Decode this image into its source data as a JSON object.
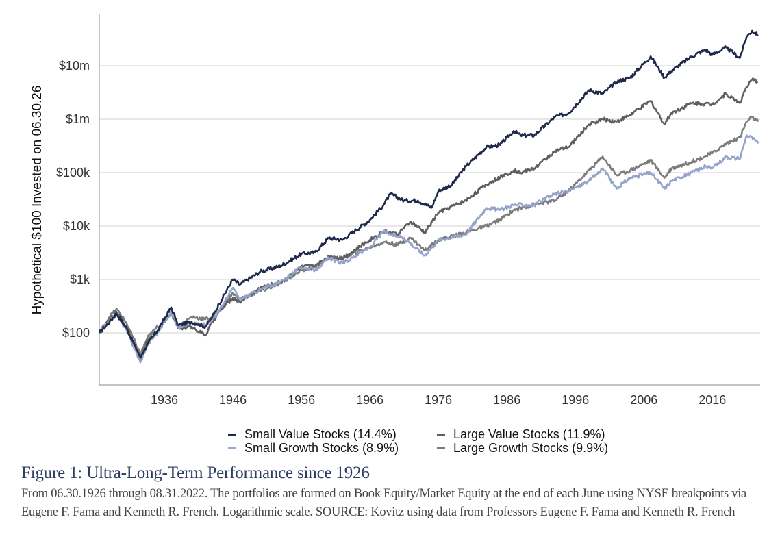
{
  "chart_data": {
    "type": "line",
    "title": "Figure 1: Ultra-Long-Term Performance since 1926",
    "xlabel": "",
    "ylabel": "Hypothetical $100 Invested on 06.30.26",
    "y_scale": "log",
    "ylim": [
      20,
      70000000
    ],
    "xlim": [
      1926.5,
      2022.67
    ],
    "grid": true,
    "legend_position": "bottom",
    "x_ticks": [
      1936,
      1946,
      1956,
      1966,
      1976,
      1986,
      1996,
      2006,
      2016
    ],
    "x_tick_labels": [
      "1936",
      "1946",
      "1956",
      "1966",
      "1976",
      "1986",
      "1996",
      "2006",
      "2016"
    ],
    "y_ticks": [
      100,
      1000,
      10000,
      100000,
      1000000,
      10000000
    ],
    "y_tick_labels": [
      "$100",
      "$1k",
      "$10k",
      "$100k",
      "$1m",
      "$10m"
    ],
    "series": [
      {
        "name": "Small Value Stocks (14.4%)",
        "color": "#1f2a4a",
        "x": [
          1926.5,
          1928,
          1929,
          1930.5,
          1932.5,
          1933.5,
          1935,
          1937,
          1938,
          1940,
          1942,
          1943,
          1944,
          1946,
          1947,
          1950,
          1953,
          1956,
          1958,
          1960,
          1962,
          1966,
          1968,
          1969,
          1971,
          1973,
          1975,
          1976,
          1978,
          1980,
          1983,
          1985,
          1987,
          1988,
          1990,
          1993,
          1995,
          1998,
          2000,
          2002,
          2004,
          2007,
          2009,
          2010,
          2013,
          2015,
          2016,
          2018,
          2020,
          2021,
          2021.8,
          2022.67
        ],
        "values": [
          100,
          160,
          230,
          120,
          35,
          60,
          110,
          300,
          140,
          160,
          130,
          200,
          350,
          1000,
          800,
          1400,
          1800,
          3000,
          3200,
          6000,
          5500,
          13000,
          25000,
          40000,
          30000,
          30000,
          22000,
          45000,
          60000,
          130000,
          300000,
          330000,
          600000,
          500000,
          500000,
          1100000,
          1300000,
          3500000,
          3000000,
          5000000,
          6000000,
          15000000,
          6000000,
          8000000,
          15000000,
          20000000,
          16000000,
          22000000,
          14000000,
          35000000,
          45000000,
          38000000
        ]
      },
      {
        "name": "Large Value Stocks (11.9%)",
        "color": "#5f5f5f",
        "x": [
          1926.5,
          1928,
          1929,
          1930.5,
          1932.5,
          1933.5,
          1935,
          1937,
          1938,
          1940,
          1942,
          1943,
          1944,
          1946,
          1947,
          1950,
          1953,
          1956,
          1958,
          1960,
          1962,
          1966,
          1968,
          1970,
          1972,
          1974,
          1976,
          1980,
          1983,
          1987,
          1988,
          1990,
          1993,
          1995,
          1998,
          2000,
          2002,
          2004,
          2007,
          2009,
          2010,
          2013,
          2016,
          2018,
          2020,
          2021,
          2021.8,
          2022.67
        ],
        "values": [
          100,
          180,
          250,
          130,
          30,
          70,
          110,
          250,
          120,
          130,
          90,
          160,
          250,
          450,
          380,
          700,
          900,
          1700,
          1800,
          2700,
          2500,
          5500,
          8000,
          7000,
          12000,
          7500,
          18000,
          30000,
          60000,
          110000,
          100000,
          120000,
          250000,
          300000,
          800000,
          1000000,
          900000,
          1200000,
          2200000,
          800000,
          1300000,
          2000000,
          1900000,
          3000000,
          2000000,
          4000000,
          5500000,
          5000000
        ]
      },
      {
        "name": "Small Growth Stocks (8.9%)",
        "color": "#95a4cb",
        "x": [
          1926.5,
          1928,
          1929,
          1930.5,
          1932.5,
          1933.5,
          1935,
          1937,
          1938,
          1940,
          1942,
          1943,
          1944,
          1946,
          1947,
          1950,
          1953,
          1956,
          1958,
          1960,
          1962,
          1966,
          1968,
          1969,
          1971,
          1974,
          1976,
          1980,
          1983,
          1985,
          1987,
          1990,
          1993,
          1995,
          1998,
          2000,
          2002,
          2004,
          2007,
          2009,
          2010,
          2013,
          2015,
          2016,
          2018,
          2020,
          2021,
          2021.8,
          2022.67
        ],
        "values": [
          100,
          170,
          220,
          110,
          28,
          60,
          100,
          250,
          130,
          150,
          140,
          180,
          260,
          700,
          420,
          650,
          900,
          1700,
          1500,
          2500,
          2000,
          4000,
          8000,
          7000,
          6000,
          2800,
          5500,
          7000,
          22000,
          20000,
          25000,
          25000,
          40000,
          45000,
          70000,
          120000,
          50000,
          80000,
          100000,
          50000,
          70000,
          100000,
          130000,
          120000,
          200000,
          180000,
          500000,
          450000,
          350000
        ]
      },
      {
        "name": "Large Growth Stocks (9.9%)",
        "color": "#7c7c7c",
        "x": [
          1926.5,
          1928,
          1929,
          1930.5,
          1932.5,
          1933.5,
          1935,
          1937,
          1938,
          1940,
          1942,
          1943,
          1944,
          1946,
          1947,
          1950,
          1953,
          1956,
          1958,
          1960,
          1962,
          1966,
          1968,
          1970,
          1972,
          1974,
          1976,
          1980,
          1983,
          1985,
          1987,
          1990,
          1993,
          1995,
          1998,
          2000,
          2002,
          2004,
          2007,
          2009,
          2010,
          2013,
          2016,
          2018,
          2020,
          2021,
          2021.8,
          2022.67
        ],
        "values": [
          100,
          200,
          280,
          150,
          40,
          80,
          130,
          230,
          130,
          200,
          180,
          200,
          260,
          550,
          420,
          600,
          850,
          1500,
          1700,
          2600,
          2500,
          4000,
          5000,
          4500,
          6000,
          3500,
          5500,
          7500,
          10000,
          13000,
          20000,
          25000,
          30000,
          45000,
          110000,
          200000,
          90000,
          110000,
          170000,
          80000,
          120000,
          160000,
          230000,
          350000,
          450000,
          900000,
          1100000,
          900000
        ]
      }
    ]
  },
  "legend": {
    "items": [
      {
        "label": "Small Value Stocks (14.4%)",
        "color": "#1f2a4a"
      },
      {
        "label": "Large Value Stocks (11.9%)",
        "color": "#5f5f5f"
      },
      {
        "label": "Small Growth Stocks (8.9%)",
        "color": "#95a4cb"
      },
      {
        "label": "Large Growth Stocks (9.9%)",
        "color": "#7c7c7c"
      }
    ]
  },
  "caption": {
    "title": "Figure 1: Ultra-Long-Term Performance since 1926",
    "body": "From 06.30.1926 through 08.31.2022. The portfolios are formed on Book Equity/Market Equity at the end of each June using NYSE breakpoints via Eugene F. Fama and Kenneth R. French. Logarithmic scale. SOURCE: Kovitz using data from Professors Eugene F. Fama and Kenneth R. French"
  }
}
